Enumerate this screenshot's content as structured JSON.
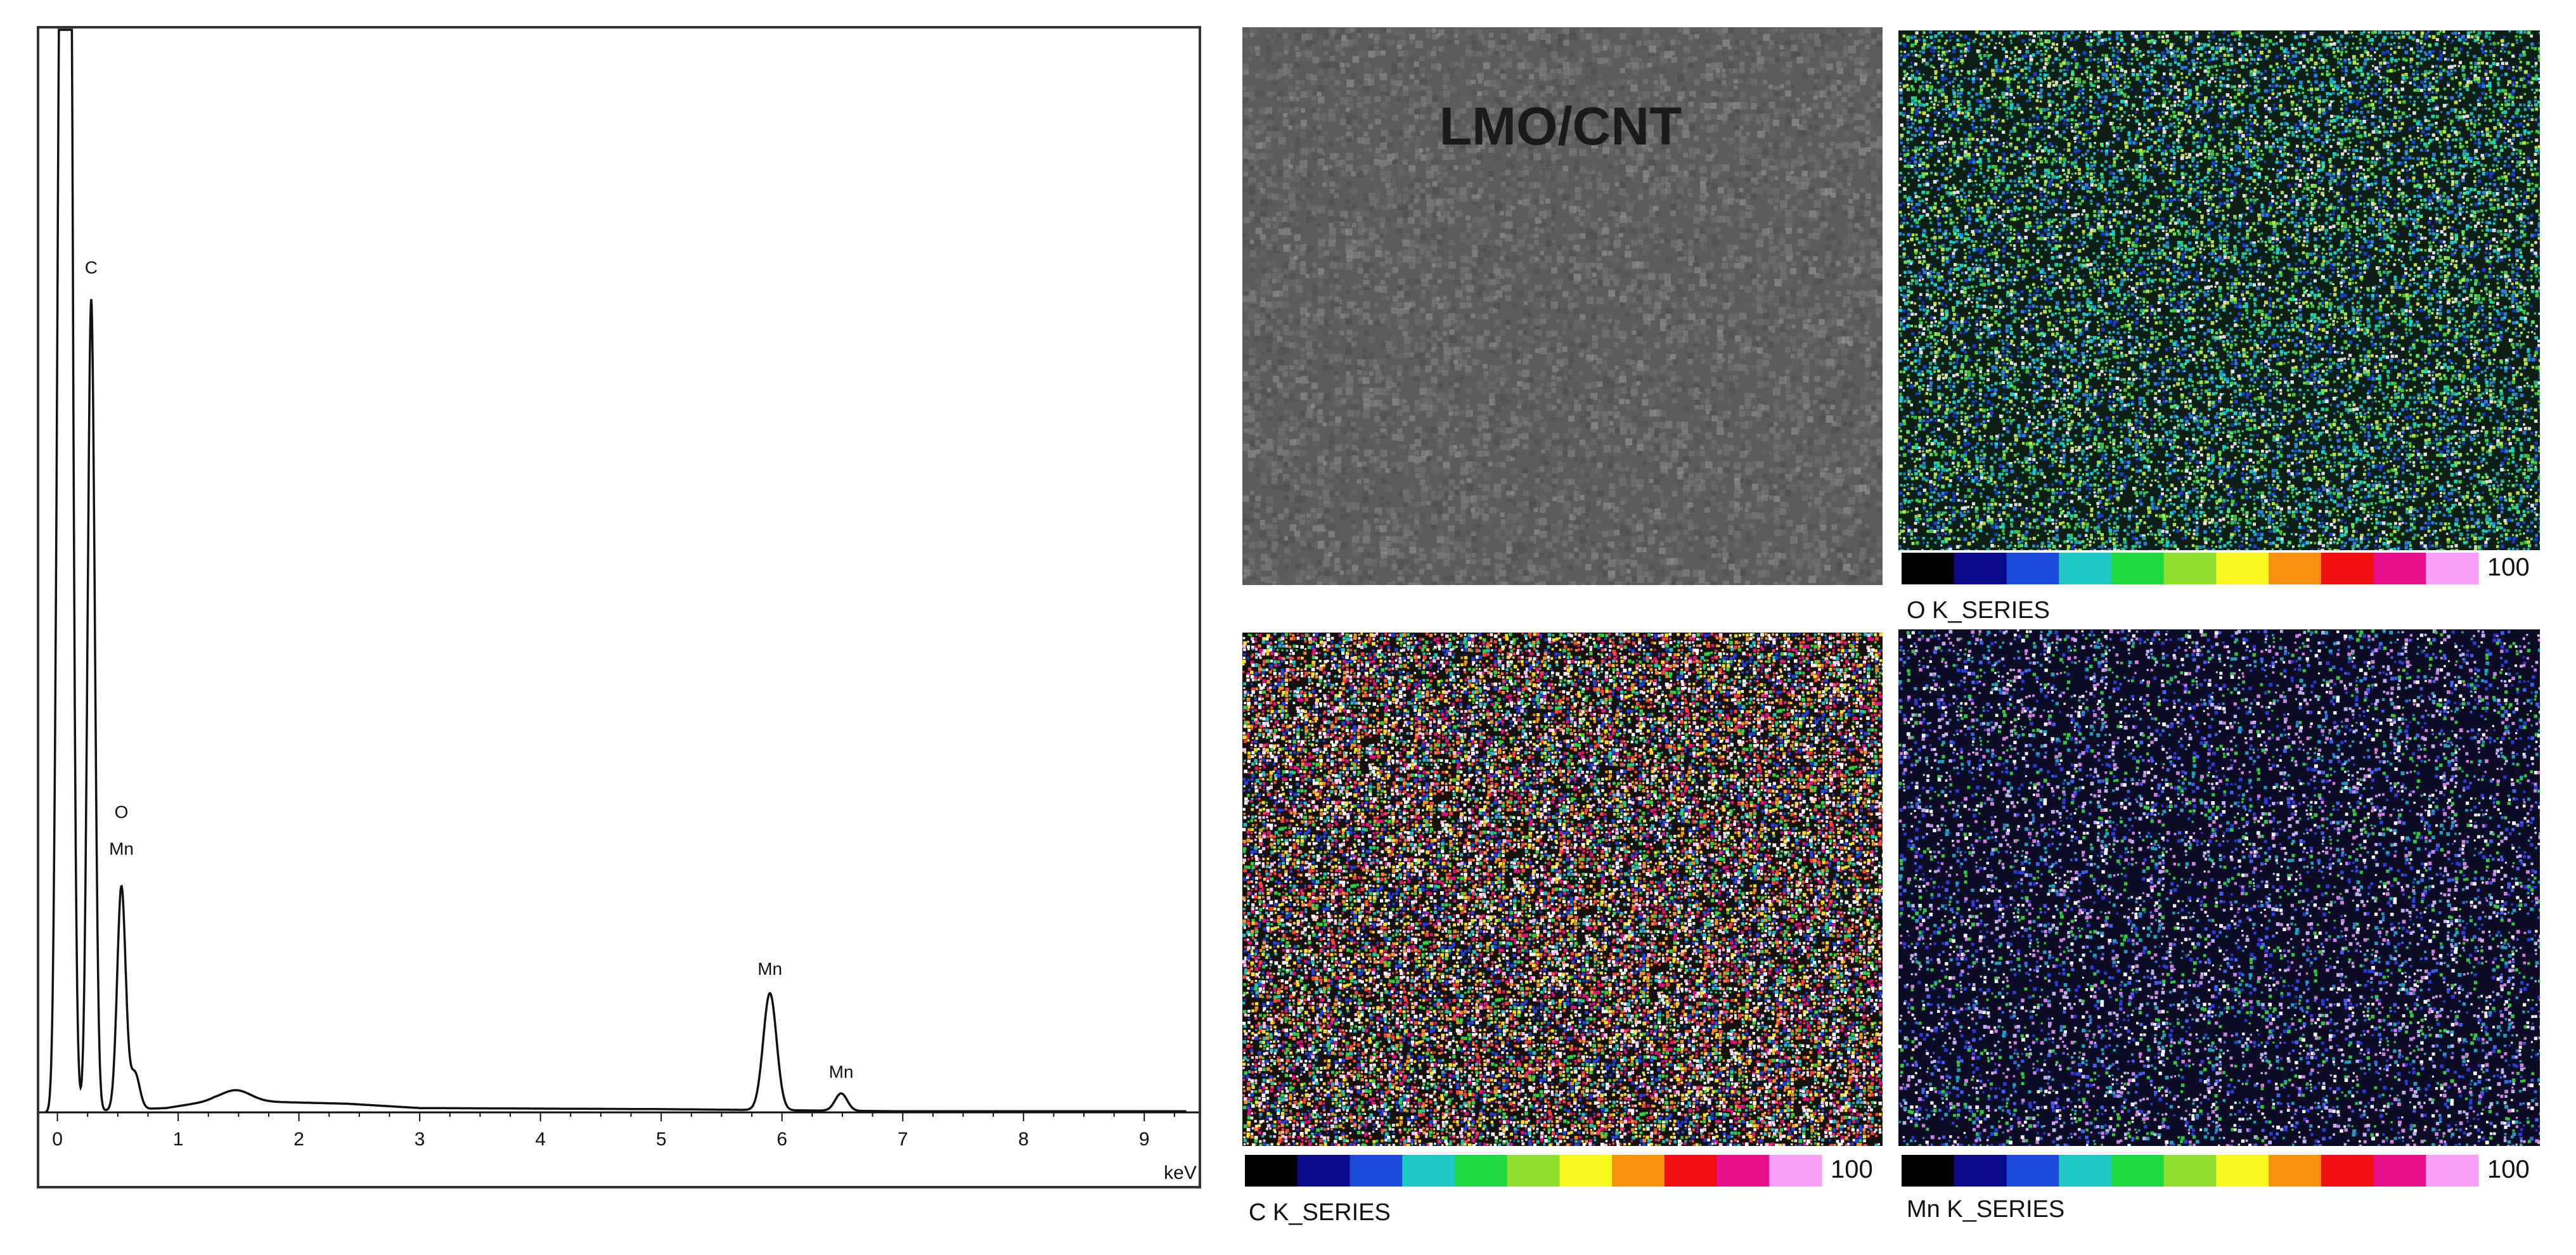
{
  "chart_data": [
    {
      "type": "line",
      "title": "",
      "xlabel": "keV",
      "ylabel": "",
      "xlim": [
        -0.15,
        9.45
      ],
      "ylim": [
        0,
        100
      ],
      "grid": false,
      "x_ticks": [
        "0",
        "1",
        "2",
        "3",
        "4",
        "5",
        "6",
        "7",
        "8",
        "9"
      ],
      "peaks": [
        {
          "x": 0.02,
          "y": 74,
          "width": 0.03
        },
        {
          "x": 0.08,
          "y": 200,
          "width": 0.035
        },
        {
          "x": 0.28,
          "y": 75,
          "width": 0.03
        },
        {
          "x": 0.53,
          "y": 20.6,
          "width": 0.035
        },
        {
          "x": 0.64,
          "y": 3.4,
          "width": 0.04
        },
        {
          "x": 1.48,
          "y": 1.0,
          "width": 0.12
        },
        {
          "x": 5.9,
          "y": 10.8,
          "width": 0.055
        },
        {
          "x": 6.49,
          "y": 1.6,
          "width": 0.05
        }
      ],
      "background": [
        {
          "x": 0.9,
          "y": 0.4
        },
        {
          "x": 1.3,
          "y": 1.1
        },
        {
          "x": 2.4,
          "y": 0.8
        },
        {
          "x": 3.0,
          "y": 0.4
        },
        {
          "x": 5.0,
          "y": 0.3
        },
        {
          "x": 7.0,
          "y": 0.1
        },
        {
          "x": 9.3,
          "y": 0.1
        }
      ],
      "annotations": [
        {
          "text": "C",
          "x": 0.28,
          "y": 77.5
        },
        {
          "text": "O",
          "x": 0.53,
          "y": 27.2
        },
        {
          "text": "Mn",
          "x": 0.53,
          "y": 23.8
        },
        {
          "text": "Mn",
          "x": 5.9,
          "y": 12.7
        },
        {
          "text": "Mn",
          "x": 6.49,
          "y": 3.2
        }
      ]
    },
    {
      "type": "heatmap",
      "panels": [
        {
          "id": "sem",
          "label": "LMO/CNT",
          "caption": "",
          "base_color": "#5c5c5c",
          "palette": "gray",
          "density": 0.5
        },
        {
          "id": "o",
          "label": "",
          "caption": "O K_SERIES",
          "base_color": "#0d1f14",
          "palette": "green",
          "density": 0.55
        },
        {
          "id": "c",
          "label": "",
          "caption": "C K_SERIES",
          "base_color": "#15120e",
          "palette": "multi",
          "density": 0.78
        },
        {
          "id": "mn",
          "label": "",
          "caption": "Mn K_SERIES",
          "base_color": "#0c0c24",
          "palette": "blue",
          "density": 0.32
        }
      ],
      "colorbar": {
        "max_label": "100",
        "colors": [
          "#000000",
          "#0a0a8a",
          "#1a4ad8",
          "#20c8c8",
          "#20d840",
          "#90e030",
          "#f8f820",
          "#f89010",
          "#f01010",
          "#e81088",
          "#f8a0f8"
        ]
      }
    }
  ]
}
